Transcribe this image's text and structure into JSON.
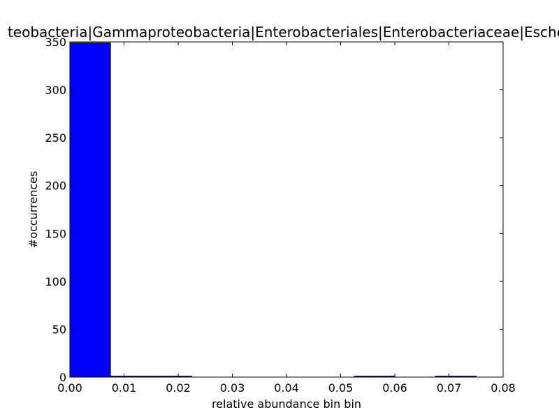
{
  "chart_data": {
    "type": "bar",
    "title": "teobacteria|Gammaproteobacteria|Enterobacteriales|Enterobacteriaceae|Esche",
    "xlabel": "relative abundance bin bin",
    "ylabel": "#occurrences",
    "xlim": [
      0.0,
      0.08
    ],
    "ylim": [
      0,
      350
    ],
    "x_ticks": [
      "0.00",
      "0.01",
      "0.02",
      "0.03",
      "0.04",
      "0.05",
      "0.06",
      "0.07",
      "0.08"
    ],
    "y_ticks": [
      "0",
      "50",
      "100",
      "150",
      "200",
      "250",
      "300",
      "350"
    ],
    "bin_edges": [
      0.0,
      0.0075,
      0.015,
      0.0225,
      0.03,
      0.0375,
      0.045,
      0.0525,
      0.06,
      0.0675,
      0.075
    ],
    "counts": [
      349,
      1,
      1,
      0,
      0,
      0,
      0,
      1,
      0,
      1
    ],
    "bar_color": "#0000ff",
    "grid": false
  }
}
